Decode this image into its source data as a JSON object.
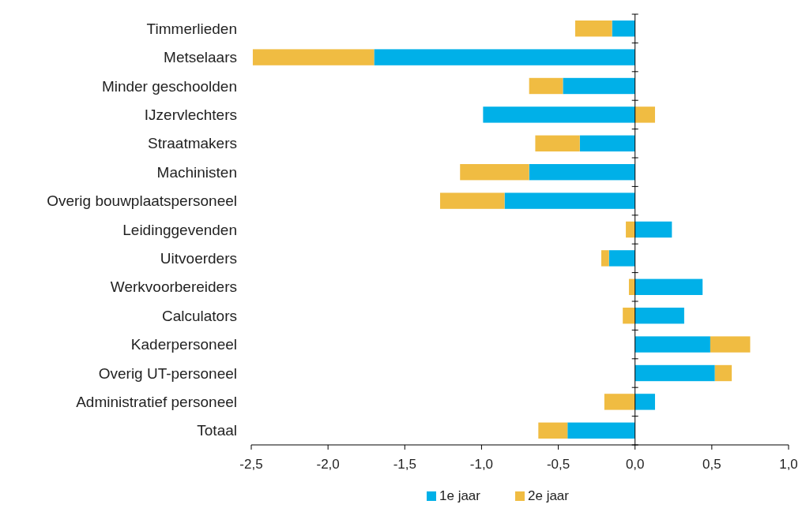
{
  "chart_data": {
    "type": "bar",
    "orientation": "horizontal",
    "stacked": true,
    "categories": [
      "Timmerlieden",
      "Metselaars",
      "Minder geschoolden",
      "IJzervlechters",
      "Straatmakers",
      "Machinisten",
      "Overig bouwplaatspersoneel",
      "Leidinggevenden",
      "Uitvoerders",
      "Werkvoorbereiders",
      "Calculators",
      "Kaderpersoneel",
      "Overig UT-personeel",
      "Administratief personeel",
      "Totaal"
    ],
    "series": [
      {
        "name": "1e jaar",
        "color": "#00b0e8",
        "values": [
          -0.15,
          -1.7,
          -0.47,
          -0.99,
          -0.36,
          -0.69,
          -0.85,
          0.24,
          -0.17,
          0.44,
          0.32,
          0.49,
          0.52,
          0.13,
          -0.44
        ]
      },
      {
        "name": "2e jaar",
        "color": "#f0bc42",
        "values": [
          -0.24,
          -0.79,
          -0.22,
          0.13,
          -0.29,
          -0.45,
          -0.42,
          -0.06,
          -0.05,
          -0.04,
          -0.08,
          0.26,
          0.11,
          -0.2,
          -0.19
        ]
      }
    ],
    "xlim": [
      -2.5,
      1
    ],
    "xticks": [
      {
        "value": -2.5,
        "label": "-2,5"
      },
      {
        "value": -2,
        "label": "-2,0"
      },
      {
        "value": -1.5,
        "label": "-1,5"
      },
      {
        "value": -1,
        "label": "-1,0"
      },
      {
        "value": -0.5,
        "label": "-0,5"
      },
      {
        "value": 0,
        "label": "0,0"
      },
      {
        "value": 0.5,
        "label": "0,5"
      },
      {
        "value": 1,
        "label": "1,0"
      }
    ],
    "legend": "bottom"
  }
}
